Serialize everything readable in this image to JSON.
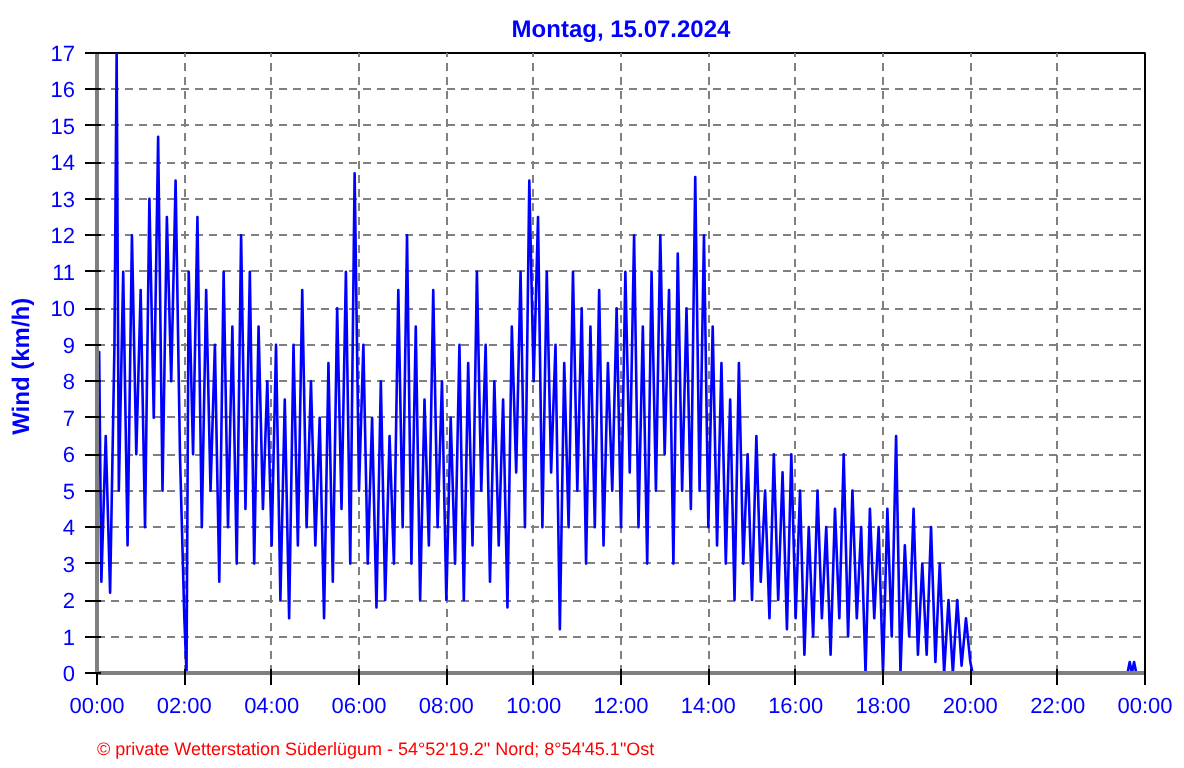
{
  "chart_data": {
    "type": "line",
    "title": "Montag, 15.07.2024",
    "ylabel": "Wind  (km/h)",
    "annotations": [
      "© private Wetterstation Süderlügum  -  54°52'19.2\" Nord; 8°54'45.1\"Ost"
    ],
    "x": [
      0.0,
      0.05,
      0.1,
      0.2,
      0.3,
      0.4,
      0.45,
      0.5,
      0.6,
      0.7,
      0.8,
      0.9,
      1.0,
      1.1,
      1.2,
      1.3,
      1.4,
      1.5,
      1.6,
      1.7,
      1.8,
      1.9,
      2.0,
      2.05,
      2.1,
      2.2,
      2.3,
      2.4,
      2.5,
      2.6,
      2.7,
      2.8,
      2.9,
      3.0,
      3.1,
      3.2,
      3.3,
      3.4,
      3.5,
      3.6,
      3.7,
      3.8,
      3.9,
      4.0,
      4.1,
      4.2,
      4.3,
      4.4,
      4.5,
      4.6,
      4.7,
      4.8,
      4.9,
      5.0,
      5.1,
      5.2,
      5.3,
      5.4,
      5.5,
      5.6,
      5.7,
      5.8,
      5.9,
      6.0,
      6.1,
      6.2,
      6.3,
      6.4,
      6.5,
      6.6,
      6.7,
      6.8,
      6.9,
      7.0,
      7.1,
      7.2,
      7.3,
      7.4,
      7.5,
      7.6,
      7.7,
      7.8,
      7.9,
      8.0,
      8.1,
      8.2,
      8.3,
      8.4,
      8.5,
      8.6,
      8.7,
      8.8,
      8.9,
      9.0,
      9.1,
      9.2,
      9.3,
      9.4,
      9.5,
      9.6,
      9.7,
      9.8,
      9.9,
      10.0,
      10.1,
      10.2,
      10.3,
      10.4,
      10.5,
      10.6,
      10.7,
      10.8,
      10.9,
      11.0,
      11.1,
      11.2,
      11.3,
      11.4,
      11.5,
      11.6,
      11.7,
      11.8,
      11.9,
      12.0,
      12.1,
      12.2,
      12.3,
      12.4,
      12.5,
      12.6,
      12.7,
      12.8,
      12.9,
      13.0,
      13.1,
      13.2,
      13.3,
      13.4,
      13.5,
      13.6,
      13.7,
      13.8,
      13.9,
      14.0,
      14.1,
      14.2,
      14.3,
      14.4,
      14.5,
      14.6,
      14.7,
      14.8,
      14.9,
      15.0,
      15.1,
      15.2,
      15.3,
      15.4,
      15.5,
      15.6,
      15.7,
      15.8,
      15.9,
      16.0,
      16.1,
      16.2,
      16.3,
      16.4,
      16.5,
      16.6,
      16.7,
      16.8,
      16.9,
      17.0,
      17.1,
      17.2,
      17.3,
      17.4,
      17.5,
      17.6,
      17.7,
      17.8,
      17.9,
      18.0,
      18.1,
      18.2,
      18.3,
      18.4,
      18.5,
      18.6,
      18.7,
      18.8,
      18.9,
      19.0,
      19.1,
      19.2,
      19.3,
      19.4,
      19.5,
      19.6,
      19.7,
      19.8,
      19.9,
      20.0,
      20.05,
      23.6,
      23.65,
      23.7,
      23.75,
      23.8,
      24.0
    ],
    "series": [
      {
        "color": "#0000ff",
        "values": [
          4,
          8.8,
          2.5,
          6.5,
          2.2,
          9,
          17,
          5,
          11,
          3.5,
          12,
          6,
          10.5,
          4,
          13,
          7,
          14.7,
          5,
          12.5,
          8,
          13.5,
          6,
          1.5,
          0,
          11,
          6,
          12.5,
          4,
          10.5,
          5,
          9,
          2.5,
          11,
          4,
          9.5,
          3,
          12,
          4.5,
          11,
          3,
          9.5,
          4.5,
          8,
          3.5,
          9,
          2,
          7.5,
          1.5,
          9,
          3.5,
          10.5,
          4,
          8,
          3.5,
          7,
          1.5,
          8.5,
          2.5,
          10,
          4.5,
          11,
          3,
          13.7,
          5,
          9,
          3,
          7,
          1.8,
          8,
          2,
          6.5,
          3,
          10.5,
          4,
          12,
          3,
          9.5,
          2,
          7.5,
          3.5,
          10.5,
          4,
          8,
          2,
          7,
          3,
          9,
          2,
          8.5,
          3.5,
          11,
          5,
          9,
          2.5,
          8,
          3.5,
          7.5,
          1.8,
          9.5,
          5.5,
          11,
          4,
          13.5,
          8,
          12.5,
          4,
          11,
          5.5,
          9,
          1.2,
          8.5,
          4,
          11,
          5,
          10,
          3,
          9.5,
          4,
          10.5,
          3.5,
          8.5,
          5,
          10,
          4,
          11,
          5.5,
          12,
          4,
          9.5,
          3,
          11,
          5,
          12,
          6,
          10.5,
          3,
          11.5,
          5,
          10,
          4.5,
          13.6,
          5,
          12,
          4,
          9.5,
          3.5,
          8.5,
          3,
          7.5,
          2,
          8.5,
          3,
          6,
          2,
          6.5,
          2.5,
          5,
          1.5,
          6,
          2,
          5.5,
          1.2,
          6,
          1.5,
          5,
          0.5,
          4,
          1,
          5,
          1.5,
          4,
          0.5,
          4.5,
          1.5,
          6,
          1,
          5,
          1.5,
          4,
          0,
          4.5,
          1.5,
          4,
          0,
          4.5,
          1,
          6.5,
          0,
          3.5,
          1,
          4.5,
          0.5,
          3,
          0.5,
          4,
          0.3,
          3,
          0,
          2,
          0,
          2,
          0.2,
          1.5,
          0.3,
          0,
          0,
          0.3,
          0,
          0.3,
          0,
          0
        ]
      }
    ],
    "xlim": [
      0,
      24
    ],
    "xticks": [
      {
        "value": 0,
        "label": "00:00"
      },
      {
        "value": 2,
        "label": "02:00"
      },
      {
        "value": 4,
        "label": "04:00"
      },
      {
        "value": 6,
        "label": "06:00"
      },
      {
        "value": 8,
        "label": "08:00"
      },
      {
        "value": 10,
        "label": "10:00"
      },
      {
        "value": 12,
        "label": "12:00"
      },
      {
        "value": 14,
        "label": "14:00"
      },
      {
        "value": 16,
        "label": "16:00"
      },
      {
        "value": 18,
        "label": "18:00"
      },
      {
        "value": 20,
        "label": "20:00"
      },
      {
        "value": 22,
        "label": "22:00"
      },
      {
        "value": 24,
        "label": "00:00"
      }
    ],
    "ylim": [
      0,
      17
    ],
    "yticks": [
      0,
      1,
      2,
      3,
      4,
      5,
      6,
      7,
      8,
      9,
      10,
      11,
      12,
      13,
      14,
      15,
      16,
      17
    ],
    "grid": true,
    "line_style": "solid"
  }
}
